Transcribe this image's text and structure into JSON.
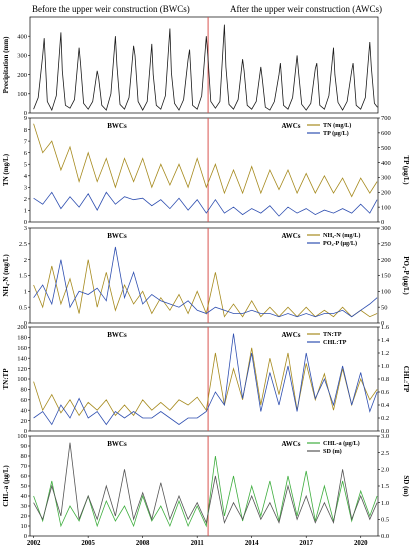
{
  "header": {
    "left": "Before the upper weir construction (BWCs)",
    "right": "After the upper weir construction (AWCs)"
  },
  "colors": {
    "precip": "#1a1a1a",
    "tn": "#a68a1e",
    "tp": "#2f4fb0",
    "nh4": "#a68a1e",
    "po4": "#2f4fb0",
    "tntp": "#a68a1e",
    "chltp": "#2f4fb0",
    "chla": "#3fae3f",
    "sd": "#555555",
    "divider": "#d9534f"
  },
  "chart_data": [
    {
      "type": "line",
      "ylabel": "Precipitation (mm)",
      "ylim": [
        0,
        500
      ],
      "yticks": [
        0,
        100,
        200,
        300,
        400
      ],
      "x": [
        2002.0,
        2002.25,
        2002.5,
        2002.58,
        2002.75,
        2003.0,
        2003.25,
        2003.5,
        2003.58,
        2003.75,
        2004.0,
        2004.25,
        2004.5,
        2004.58,
        2004.75,
        2005.0,
        2005.25,
        2005.5,
        2005.58,
        2005.75,
        2006.0,
        2006.25,
        2006.5,
        2006.58,
        2006.75,
        2007.0,
        2007.25,
        2007.5,
        2007.58,
        2007.75,
        2008.0,
        2008.25,
        2008.5,
        2008.58,
        2008.75,
        2009.0,
        2009.25,
        2009.5,
        2009.58,
        2009.75,
        2010.0,
        2010.25,
        2010.5,
        2010.58,
        2010.75,
        2011.0,
        2011.25,
        2011.5,
        2011.58,
        2011.75,
        2012.0,
        2012.25,
        2012.5,
        2012.58,
        2012.75,
        2013.0,
        2013.25,
        2013.5,
        2013.58,
        2013.75,
        2014.0,
        2014.25,
        2014.5,
        2014.58,
        2014.75,
        2015.0,
        2015.25,
        2015.5,
        2015.58,
        2015.75,
        2016.0,
        2016.25,
        2016.5,
        2016.58,
        2016.75,
        2017.0,
        2017.25,
        2017.5,
        2017.58,
        2017.75,
        2018.0,
        2018.25,
        2018.5,
        2018.58,
        2018.75,
        2019.0,
        2019.25,
        2019.5,
        2019.58,
        2019.75,
        2020.0,
        2020.25,
        2020.5,
        2020.58,
        2020.75,
        2020.92
      ],
      "series": [
        {
          "name": "",
          "values": [
            20,
            80,
            300,
            390,
            60,
            15,
            90,
            420,
            220,
            40,
            25,
            70,
            340,
            260,
            50,
            20,
            60,
            220,
            180,
            40,
            15,
            100,
            400,
            250,
            45,
            20,
            80,
            350,
            300,
            60,
            15,
            60,
            360,
            200,
            40,
            20,
            90,
            440,
            210,
            50,
            15,
            70,
            280,
            330,
            40,
            20,
            90,
            400,
            310,
            60,
            25,
            60,
            460,
            240,
            45,
            20,
            70,
            280,
            220,
            40,
            20,
            60,
            240,
            180,
            30,
            15,
            60,
            200,
            260,
            40,
            20,
            80,
            300,
            210,
            45,
            15,
            50,
            230,
            260,
            40,
            20,
            90,
            340,
            200,
            55,
            15,
            60,
            220,
            260,
            40,
            20,
            80,
            370,
            240,
            50,
            30
          ]
        }
      ]
    },
    {
      "type": "line",
      "segments": [
        "BWCs",
        "AWCs"
      ],
      "ylabel": "TN (mg/L)",
      "y2label": "TP (μg/L)",
      "ylim": [
        0,
        9
      ],
      "y2lim": [
        0,
        700
      ],
      "yticks": [
        0,
        1,
        2,
        3,
        4,
        5,
        6,
        7,
        8,
        9
      ],
      "y2ticks": [
        0,
        100,
        200,
        300,
        400,
        500,
        600,
        700
      ],
      "x": [
        2002.0,
        2002.5,
        2003.0,
        2003.5,
        2004.0,
        2004.5,
        2005.0,
        2005.5,
        2006.0,
        2006.5,
        2007.0,
        2007.5,
        2008.0,
        2008.5,
        2009.0,
        2009.5,
        2010.0,
        2010.5,
        2011.0,
        2011.5,
        2012.0,
        2012.5,
        2013.0,
        2013.5,
        2014.0,
        2014.5,
        2015.0,
        2015.5,
        2016.0,
        2016.5,
        2017.0,
        2017.5,
        2018.0,
        2018.5,
        2019.0,
        2019.5,
        2020.0,
        2020.5,
        2020.9
      ],
      "series": [
        {
          "name": "TN (mg/L)",
          "axis": "left",
          "values": [
            8.5,
            6.0,
            7.0,
            4.5,
            6.5,
            3.5,
            6.0,
            3.5,
            5.5,
            3.0,
            5.5,
            3.5,
            5.5,
            3.0,
            5.0,
            3.2,
            5.0,
            3.0,
            5.5,
            3.0,
            5.0,
            2.5,
            4.5,
            2.5,
            4.8,
            2.5,
            4.5,
            2.8,
            4.5,
            2.5,
            4.2,
            2.5,
            4.0,
            2.5,
            3.8,
            2.2,
            3.8,
            2.5,
            3.5
          ]
        },
        {
          "name": "TP (μg/L)",
          "axis": "right",
          "values": [
            160,
            120,
            200,
            90,
            170,
            100,
            190,
            80,
            200,
            120,
            170,
            150,
            160,
            110,
            150,
            90,
            160,
            80,
            150,
            60,
            150,
            60,
            100,
            50,
            90,
            60,
            110,
            40,
            100,
            60,
            90,
            50,
            80,
            60,
            90,
            60,
            120,
            60,
            150
          ]
        }
      ]
    },
    {
      "type": "line",
      "segments": [
        "BWCs",
        "AWCs"
      ],
      "ylabel": "NH₄-N (mg/L)",
      "y2label": "PO₄-P (μg/L)",
      "ylim": [
        0,
        3.0
      ],
      "y2lim": [
        0,
        300
      ],
      "yticks": [
        0.0,
        0.5,
        1.0,
        1.5,
        2.0,
        2.5,
        3.0
      ],
      "y2ticks": [
        0,
        50,
        100,
        150,
        200,
        250,
        300
      ],
      "x": [
        2002.0,
        2002.5,
        2003.0,
        2003.5,
        2004.0,
        2004.5,
        2005.0,
        2005.5,
        2006.0,
        2006.5,
        2007.0,
        2007.5,
        2008.0,
        2008.5,
        2009.0,
        2009.5,
        2010.0,
        2010.5,
        2011.0,
        2011.5,
        2012.0,
        2012.5,
        2013.0,
        2013.5,
        2014.0,
        2014.5,
        2015.0,
        2015.5,
        2016.0,
        2016.5,
        2017.0,
        2017.5,
        2018.0,
        2018.5,
        2019.0,
        2019.5,
        2020.0,
        2020.5,
        2020.9
      ],
      "series": [
        {
          "name": "NH₄-N (mg/L)",
          "axis": "left",
          "values": [
            1.2,
            0.5,
            1.8,
            0.6,
            1.4,
            0.3,
            2.0,
            0.5,
            1.6,
            0.4,
            1.2,
            0.6,
            1.0,
            0.3,
            0.8,
            0.4,
            0.9,
            0.3,
            1.0,
            0.3,
            1.6,
            0.2,
            0.6,
            0.2,
            0.7,
            0.2,
            0.5,
            0.2,
            0.5,
            0.2,
            0.5,
            0.2,
            0.4,
            0.2,
            0.5,
            0.2,
            0.4,
            0.2,
            0.3
          ]
        },
        {
          "name": "PO₄-P (μg/L)",
          "axis": "right",
          "values": [
            80,
            120,
            60,
            200,
            50,
            100,
            90,
            110,
            70,
            240,
            80,
            160,
            60,
            90,
            70,
            60,
            50,
            70,
            40,
            30,
            50,
            40,
            30,
            30,
            40,
            30,
            30,
            20,
            30,
            20,
            30,
            20,
            30,
            30,
            40,
            20,
            40,
            60,
            80
          ]
        }
      ]
    },
    {
      "type": "line",
      "segments": [
        "BWCs",
        "AWCs"
      ],
      "ylabel": "TN:TP",
      "y2label": "CHL:TP",
      "ylim": [
        0,
        200
      ],
      "y2lim": [
        0,
        1.6
      ],
      "yticks": [
        0,
        20,
        40,
        60,
        80,
        100,
        120,
        140,
        160,
        180,
        200
      ],
      "y2ticks": [
        0.0,
        0.2,
        0.4,
        0.6,
        0.8,
        1.0,
        1.2,
        1.4,
        1.6
      ],
      "x": [
        2002.0,
        2002.5,
        2003.0,
        2003.5,
        2004.0,
        2004.5,
        2005.0,
        2005.5,
        2006.0,
        2006.5,
        2007.0,
        2007.5,
        2008.0,
        2008.5,
        2009.0,
        2009.5,
        2010.0,
        2010.5,
        2011.0,
        2011.5,
        2012.0,
        2012.5,
        2013.0,
        2013.5,
        2014.0,
        2014.5,
        2015.0,
        2015.5,
        2016.0,
        2016.5,
        2017.0,
        2017.5,
        2018.0,
        2018.5,
        2019.0,
        2019.5,
        2020.0,
        2020.5,
        2020.9
      ],
      "series": [
        {
          "name": "TN:TP",
          "axis": "left",
          "values": [
            95,
            40,
            70,
            35,
            60,
            30,
            55,
            40,
            60,
            30,
            50,
            30,
            60,
            40,
            55,
            40,
            60,
            50,
            65,
            40,
            150,
            50,
            120,
            60,
            160,
            50,
            140,
            70,
            150,
            40,
            130,
            60,
            110,
            40,
            120,
            50,
            100,
            60,
            80
          ]
        },
        {
          "name": "CHL:TP",
          "axis": "right",
          "values": [
            0.2,
            0.3,
            0.1,
            0.4,
            0.2,
            0.5,
            0.2,
            0.3,
            0.1,
            0.3,
            0.2,
            0.3,
            0.2,
            0.2,
            0.3,
            0.2,
            0.1,
            0.2,
            0.2,
            0.3,
            0.6,
            0.4,
            1.5,
            0.5,
            1.2,
            0.3,
            0.9,
            0.4,
            1.0,
            0.3,
            1.2,
            0.5,
            0.8,
            0.4,
            1.0,
            0.4,
            0.9,
            0.3,
            0.6
          ]
        }
      ]
    },
    {
      "type": "line",
      "segments": [
        "BWCs",
        "AWCs"
      ],
      "ylabel": "CHL-a (μg/L)",
      "y2label": "SD (m)",
      "ylim": [
        0,
        100
      ],
      "y2lim": [
        0,
        3.0
      ],
      "yticks": [
        0,
        10,
        20,
        30,
        40,
        50,
        60,
        70,
        80,
        90,
        100
      ],
      "y2ticks": [
        0.0,
        0.5,
        1.0,
        1.5,
        2.0,
        2.5,
        3.0
      ],
      "x": [
        2002.0,
        2002.5,
        2003.0,
        2003.5,
        2004.0,
        2004.5,
        2005.0,
        2005.5,
        2006.0,
        2006.5,
        2007.0,
        2007.5,
        2008.0,
        2008.5,
        2009.0,
        2009.5,
        2010.0,
        2010.5,
        2011.0,
        2011.5,
        2012.0,
        2012.5,
        2013.0,
        2013.5,
        2014.0,
        2014.5,
        2015.0,
        2015.5,
        2016.0,
        2016.5,
        2017.0,
        2017.5,
        2018.0,
        2018.5,
        2019.0,
        2019.5,
        2020.0,
        2020.5,
        2020.9
      ],
      "series": [
        {
          "name": "CHL-a (μg/L)",
          "axis": "left",
          "values": [
            40,
            15,
            55,
            10,
            30,
            15,
            40,
            10,
            35,
            15,
            30,
            10,
            40,
            15,
            30,
            10,
            35,
            10,
            30,
            10,
            80,
            20,
            60,
            15,
            50,
            20,
            55,
            15,
            60,
            20,
            65,
            15,
            50,
            15,
            55,
            15,
            45,
            20,
            40
          ]
        },
        {
          "name": "SD (m)",
          "axis": "right",
          "values": [
            1.0,
            0.5,
            1.5,
            0.6,
            2.8,
            0.5,
            1.2,
            0.5,
            1.5,
            0.6,
            2.0,
            0.5,
            1.3,
            0.5,
            1.6,
            0.5,
            1.2,
            0.5,
            1.0,
            0.4,
            1.8,
            0.4,
            1.0,
            0.5,
            1.2,
            0.5,
            1.0,
            0.4,
            1.5,
            0.5,
            1.2,
            0.4,
            1.0,
            0.4,
            2.0,
            0.5,
            1.2,
            0.5,
            1.0
          ]
        }
      ]
    }
  ],
  "x_axis": {
    "ticks": [
      "2002",
      "2005",
      "2008",
      "2011",
      "2014",
      "2017",
      "2020"
    ],
    "tick_values": [
      2002,
      2005,
      2008,
      2011,
      2014,
      2017,
      2020
    ],
    "xlim": [
      2001.8,
      2020.95
    ],
    "weir_year": 2011.6
  }
}
